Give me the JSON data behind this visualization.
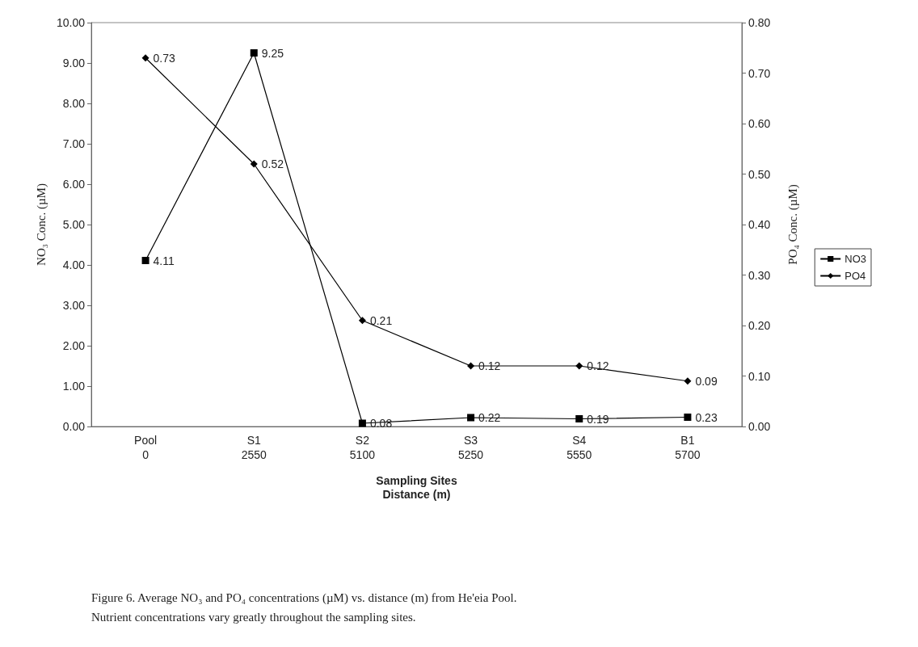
{
  "chart_data": {
    "type": "line",
    "categories": [
      "Pool\n0",
      "S1\n2550",
      "S2\n5100",
      "S3\n5250",
      "S4\n5550",
      "B1\n5700"
    ],
    "xlabel": "Sampling Sites\nDistance (m)",
    "ylabel": "NO₃ Conc. (µM)",
    "y2label": "PO₄ Conc. (µM)",
    "series": [
      {
        "name": "NO3",
        "color": "#000000",
        "marker": "square",
        "values": [
          4.11,
          9.25,
          0.08,
          0.22,
          0.19,
          0.23
        ]
      },
      {
        "name": "PO4",
        "color": "#000000",
        "marker": "diamond",
        "axis": "y2",
        "values": [
          0.73,
          0.52,
          0.21,
          0.12,
          0.12,
          0.09
        ]
      }
    ],
    "ylim": [
      0,
      10
    ],
    "yticks": [
      {
        "value": 0,
        "label": "0.00"
      },
      {
        "value": 1,
        "label": "1.00"
      },
      {
        "value": 2,
        "label": "2.00"
      },
      {
        "value": 3,
        "label": "3.00"
      },
      {
        "value": 4,
        "label": "4.00"
      },
      {
        "value": 5,
        "label": "5.00"
      },
      {
        "value": 6,
        "label": "6.00"
      },
      {
        "value": 7,
        "label": "7.00"
      },
      {
        "value": 8,
        "label": "8.00"
      },
      {
        "value": 9,
        "label": "9.00"
      },
      {
        "value": 10,
        "label": "10.00"
      }
    ],
    "y2lim": [
      0,
      0.8
    ],
    "y2ticks": [
      {
        "value": 0,
        "label": "0.00"
      },
      {
        "value": 0.1,
        "label": "0.10"
      },
      {
        "value": 0.2,
        "label": "0.20"
      },
      {
        "value": 0.3,
        "label": "0.30"
      },
      {
        "value": 0.4,
        "label": "0.40"
      },
      {
        "value": 0.5,
        "label": "0.50"
      },
      {
        "value": 0.6,
        "label": "0.60"
      },
      {
        "value": 0.7,
        "label": "0.70"
      },
      {
        "value": 0.8,
        "label": "0.80"
      }
    ],
    "data_labels": true,
    "legend": "right",
    "grid": false,
    "line_style": "solid",
    "annotations": [
      "Figure 6. Average NO₃ and PO₄ concentrations (µM) vs. distance (m) from He'eia Pool.",
      "Nutrient concentrations vary greatly throughout the sampling sites."
    ]
  }
}
